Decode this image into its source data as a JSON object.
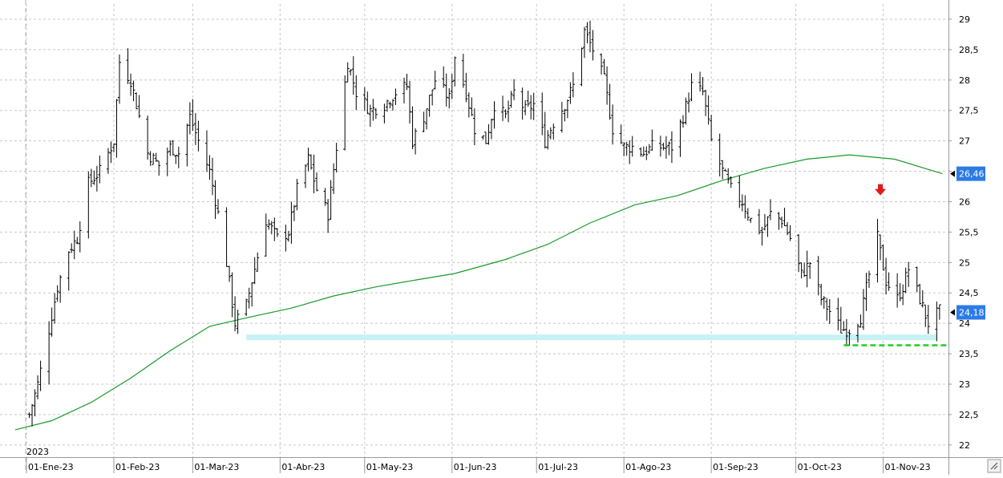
{
  "chart_data": {
    "type": "ohlc",
    "title": "",
    "year_marker": "2023",
    "x_tick_labels": [
      "01-Ene-23",
      "01-Feb-23",
      "01-Mar-23",
      "01-Abr-23",
      "01-May-23",
      "01-Jun-23",
      "01-Jul-23",
      "01-Ago-23",
      "01-Sep-23",
      "01-Oct-23",
      "01-Nov-23"
    ],
    "y_ticks": [
      "22",
      "22,5",
      "23",
      "23,5",
      "24",
      "24,5",
      "25",
      "25,5",
      "26",
      "26,5",
      "27",
      "27,5",
      "28",
      "28,5",
      "29"
    ],
    "ylim": [
      21.8,
      29.25
    ],
    "grid": true,
    "series": [
      {
        "type": "ohlc",
        "color": "#000000",
        "anchors": [
          [
            "2023-01-02",
            22.5
          ],
          [
            "2023-01-05",
            23.0
          ],
          [
            "2023-01-09",
            23.9
          ],
          [
            "2023-01-12",
            24.6
          ],
          [
            "2023-01-16",
            25.2
          ],
          [
            "2023-01-19",
            25.4
          ],
          [
            "2023-01-23",
            26.3
          ],
          [
            "2023-01-27",
            26.5
          ],
          [
            "2023-02-01",
            27.0
          ],
          [
            "2023-02-03",
            28.3
          ],
          [
            "2023-02-07",
            28.0
          ],
          [
            "2023-02-09",
            27.6
          ],
          [
            "2023-02-13",
            26.8
          ],
          [
            "2023-02-17",
            26.6
          ],
          [
            "2023-02-21",
            26.9
          ],
          [
            "2023-02-24",
            26.8
          ],
          [
            "2023-02-28",
            27.4
          ],
          [
            "2023-03-03",
            27.0
          ],
          [
            "2023-03-07",
            26.5
          ],
          [
            "2023-03-10",
            25.8
          ],
          [
            "2023-03-13",
            25.0
          ],
          [
            "2023-03-16",
            24.0
          ],
          [
            "2023-03-20",
            24.3
          ],
          [
            "2023-03-23",
            24.9
          ],
          [
            "2023-03-27",
            25.7
          ],
          [
            "2023-03-31",
            25.4
          ],
          [
            "2023-04-04",
            25.5
          ],
          [
            "2023-04-07",
            26.2
          ],
          [
            "2023-04-11",
            26.7
          ],
          [
            "2023-04-14",
            26.2
          ],
          [
            "2023-04-18",
            25.8
          ],
          [
            "2023-04-21",
            26.9
          ],
          [
            "2023-04-25",
            28.3
          ],
          [
            "2023-04-28",
            27.8
          ],
          [
            "2023-05-03",
            27.5
          ],
          [
            "2023-05-08",
            27.6
          ],
          [
            "2023-05-12",
            27.8
          ],
          [
            "2023-05-16",
            27.9
          ],
          [
            "2023-05-18",
            27.0
          ],
          [
            "2023-05-22",
            27.4
          ],
          [
            "2023-05-26",
            28.0
          ],
          [
            "2023-05-31",
            27.7
          ],
          [
            "2023-06-02",
            28.4
          ],
          [
            "2023-06-06",
            27.8
          ],
          [
            "2023-06-09",
            27.2
          ],
          [
            "2023-06-13",
            27.0
          ],
          [
            "2023-06-16",
            27.6
          ],
          [
            "2023-06-20",
            27.4
          ],
          [
            "2023-06-23",
            27.8
          ],
          [
            "2023-06-27",
            27.5
          ],
          [
            "2023-06-30",
            27.6
          ],
          [
            "2023-07-04",
            27.0
          ],
          [
            "2023-07-07",
            27.3
          ],
          [
            "2023-07-11",
            27.6
          ],
          [
            "2023-07-14",
            27.9
          ],
          [
            "2023-07-18",
            28.8
          ],
          [
            "2023-07-21",
            28.5
          ],
          [
            "2023-07-25",
            28.0
          ],
          [
            "2023-07-28",
            27.2
          ],
          [
            "2023-08-01",
            26.9
          ],
          [
            "2023-08-04",
            26.9
          ],
          [
            "2023-08-08",
            26.8
          ],
          [
            "2023-08-11",
            26.9
          ],
          [
            "2023-08-15",
            26.9
          ],
          [
            "2023-08-18",
            26.9
          ],
          [
            "2023-08-22",
            27.4
          ],
          [
            "2023-08-25",
            27.9
          ],
          [
            "2023-08-29",
            27.8
          ],
          [
            "2023-09-01",
            27.0
          ],
          [
            "2023-09-05",
            26.5
          ],
          [
            "2023-09-08",
            26.2
          ],
          [
            "2023-09-12",
            26.0
          ],
          [
            "2023-09-15",
            25.7
          ],
          [
            "2023-09-19",
            25.5
          ],
          [
            "2023-09-22",
            25.8
          ],
          [
            "2023-09-26",
            25.7
          ],
          [
            "2023-09-29",
            25.4
          ],
          [
            "2023-10-03",
            24.8
          ],
          [
            "2023-10-06",
            25.0
          ],
          [
            "2023-10-10",
            24.4
          ],
          [
            "2023-10-13",
            24.2
          ],
          [
            "2023-10-17",
            23.9
          ],
          [
            "2023-10-20",
            23.9
          ],
          [
            "2023-10-24",
            24.1
          ],
          [
            "2023-10-27",
            24.8
          ],
          [
            "2023-10-30",
            25.4
          ],
          [
            "2023-11-02",
            24.7
          ],
          [
            "2023-11-06",
            24.4
          ],
          [
            "2023-11-08",
            24.6
          ],
          [
            "2023-11-10",
            24.9
          ],
          [
            "2023-11-14",
            24.4
          ],
          [
            "2023-11-17",
            24.0
          ],
          [
            "2023-11-21",
            24.2
          ]
        ]
      },
      {
        "type": "line",
        "color": "#1a9a2a",
        "points": [
          [
            "2022-12-28",
            22.25
          ],
          [
            "2023-01-10",
            22.4
          ],
          [
            "2023-01-24",
            22.7
          ],
          [
            "2023-02-07",
            23.1
          ],
          [
            "2023-02-21",
            23.55
          ],
          [
            "2023-03-07",
            23.95
          ],
          [
            "2023-03-21",
            24.1
          ],
          [
            "2023-04-05",
            24.25
          ],
          [
            "2023-04-20",
            24.45
          ],
          [
            "2023-05-05",
            24.6
          ],
          [
            "2023-05-20",
            24.72
          ],
          [
            "2023-06-02",
            24.82
          ],
          [
            "2023-06-20",
            25.05
          ],
          [
            "2023-07-05",
            25.3
          ],
          [
            "2023-07-20",
            25.65
          ],
          [
            "2023-08-05",
            25.95
          ],
          [
            "2023-08-20",
            26.1
          ],
          [
            "2023-09-05",
            26.35
          ],
          [
            "2023-09-20",
            26.55
          ],
          [
            "2023-10-05",
            26.7
          ],
          [
            "2023-10-20",
            26.77
          ],
          [
            "2023-11-05",
            26.7
          ],
          [
            "2023-11-22",
            26.46
          ]
        ]
      }
    ],
    "support_band": {
      "from": "2023-03-20",
      "to": "2023-11-20",
      "value": 23.77,
      "color": "#c6f2f4"
    },
    "support_line": {
      "from": "2023-10-18",
      "to": "2023-11-24",
      "value": 23.64,
      "color": "#22cc22"
    },
    "arrow": {
      "date": "2023-10-31",
      "value": 26.13,
      "color": "#e01a1a"
    },
    "price_labels": [
      {
        "text": "26,46",
        "value": 26.46
      },
      {
        "text": "24,18",
        "value": 24.18
      }
    ]
  }
}
